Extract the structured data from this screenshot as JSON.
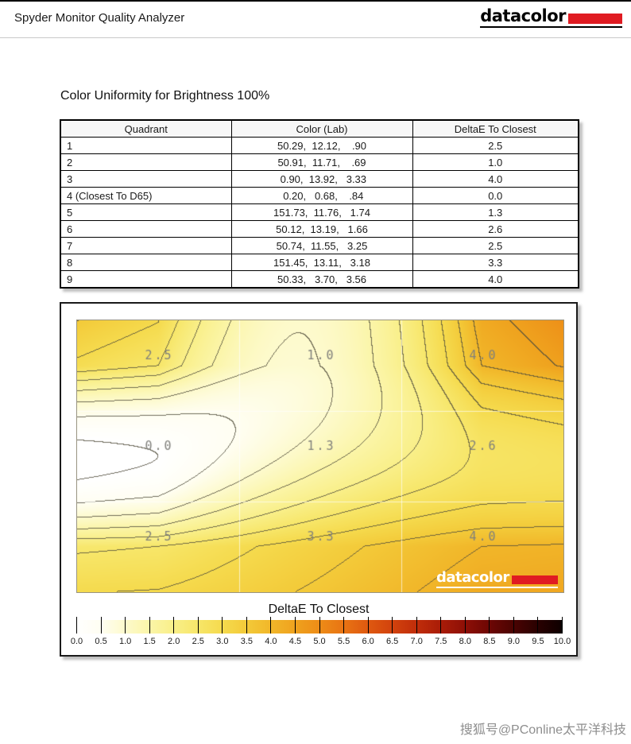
{
  "header": {
    "app_title": "Spyder Monitor Quality Analyzer",
    "brand_text": "datacolor"
  },
  "section": {
    "title": "Color Uniformity for Brightness 100%"
  },
  "table": {
    "columns": [
      "Quadrant",
      "Color (Lab)",
      "DeltaE To Closest"
    ],
    "rows": [
      {
        "quadrant": "1",
        "lab": "50.29,  12.12,    .90",
        "deltae": "2.5"
      },
      {
        "quadrant": "2",
        "lab": "50.91,  11.71,    .69",
        "deltae": "1.0"
      },
      {
        "quadrant": "3",
        "lab": " 0.90,  13.92,   3.33",
        "deltae": "4.0"
      },
      {
        "quadrant": "4 (Closest To D65)",
        "lab": " 0.20,   0.68,    .84",
        "deltae": "0.0"
      },
      {
        "quadrant": "5",
        "lab": "151.73,  11.76,   1.74",
        "deltae": "1.3"
      },
      {
        "quadrant": "6",
        "lab": "50.12,  13.19,   1.66",
        "deltae": "2.6"
      },
      {
        "quadrant": "7",
        "lab": "50.74,  11.55,   3.25",
        "deltae": "2.5"
      },
      {
        "quadrant": "8",
        "lab": "151.45,  13.11,   3.18",
        "deltae": "3.3"
      },
      {
        "quadrant": "9",
        "lab": "50.33,   3.70,   3.56",
        "deltae": "4.0"
      }
    ]
  },
  "chart_data": {
    "type": "heatmap",
    "title": "DeltaE To Closest",
    "rows": [
      "top",
      "middle",
      "bottom"
    ],
    "cols": [
      "left",
      "center",
      "right"
    ],
    "values": [
      [
        2.5,
        1.0,
        4.0
      ],
      [
        0.0,
        1.3,
        2.6
      ],
      [
        2.5,
        3.3,
        4.0
      ]
    ],
    "labels": [
      [
        "2.5",
        "1.0",
        "4.0"
      ],
      [
        "0.0",
        "1.3",
        "2.6"
      ],
      [
        "2.5",
        "3.3",
        "4.0"
      ]
    ],
    "contour_interval": 0.5,
    "scale_range": [
      0,
      10
    ],
    "grid": true,
    "colormap": [
      {
        "v": 0.0,
        "c": "#ffffff"
      },
      {
        "v": 0.5,
        "c": "#fffef2"
      },
      {
        "v": 1.0,
        "c": "#fdfacd"
      },
      {
        "v": 1.5,
        "c": "#fbf5a8"
      },
      {
        "v": 2.0,
        "c": "#f9ef89"
      },
      {
        "v": 2.5,
        "c": "#f7e669"
      },
      {
        "v": 3.0,
        "c": "#f5da4d"
      },
      {
        "v": 3.5,
        "c": "#f3ca39"
      },
      {
        "v": 4.0,
        "c": "#f1b629"
      },
      {
        "v": 4.5,
        "c": "#efa21e"
      },
      {
        "v": 5.0,
        "c": "#ed8c17"
      },
      {
        "v": 5.5,
        "c": "#e87313"
      },
      {
        "v": 6.0,
        "c": "#df5910"
      },
      {
        "v": 6.5,
        "c": "#d2420d"
      },
      {
        "v": 7.0,
        "c": "#c02d0a"
      },
      {
        "v": 7.5,
        "c": "#a91c08"
      },
      {
        "v": 8.0,
        "c": "#8d0f06"
      },
      {
        "v": 8.5,
        "c": "#6d0704"
      },
      {
        "v": 9.0,
        "c": "#4a0302"
      },
      {
        "v": 9.5,
        "c": "#290101"
      },
      {
        "v": 10.0,
        "c": "#0d0000"
      }
    ],
    "colorbar_ticks": [
      "0.0",
      "0.5",
      "1.0",
      "1.5",
      "2.0",
      "2.5",
      "3.0",
      "3.5",
      "4.0",
      "4.5",
      "5.0",
      "5.5",
      "6.0",
      "6.5",
      "7.0",
      "7.5",
      "8.0",
      "8.5",
      "9.0",
      "9.5",
      "10.0"
    ]
  },
  "colorbar": {
    "title": "DeltaE To Closest"
  },
  "plot_logo": {
    "text": "datacolor"
  },
  "watermark": {
    "text": "搜狐号@PConline太平洋科技"
  },
  "colors": {
    "brand_red": "#e01b22",
    "contour_line": "#524e3c",
    "contour_label": "#80807c",
    "grid_line": "rgba(255,255,255,0.65)"
  }
}
